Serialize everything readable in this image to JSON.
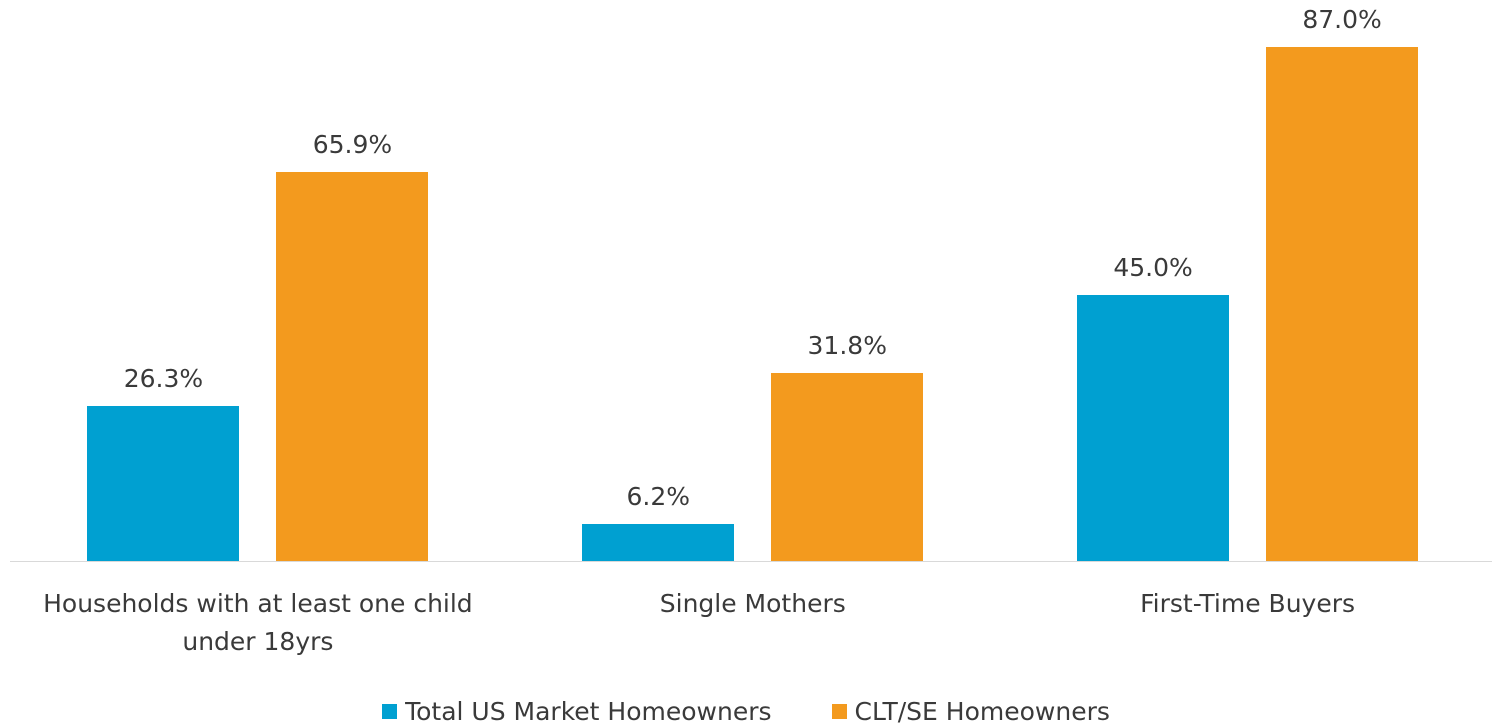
{
  "chart_data": {
    "type": "bar",
    "categories": [
      "Households with at least one child under 18yrs",
      "Single Mothers",
      "First-Time Buyers"
    ],
    "series": [
      {
        "name": "Total US Market Homeowners",
        "color": "#00a0d1",
        "values": [
          26.3,
          6.2,
          45.0
        ],
        "value_labels": [
          "26.3%",
          "6.2%",
          "45.0%"
        ]
      },
      {
        "name": "CLT/SE Homeowners",
        "color": "#f39a1e",
        "values": [
          65.9,
          31.8,
          87.0
        ],
        "value_labels": [
          "65.9%",
          "31.8%",
          "87.0%"
        ]
      }
    ],
    "legend": "bottom"
  }
}
